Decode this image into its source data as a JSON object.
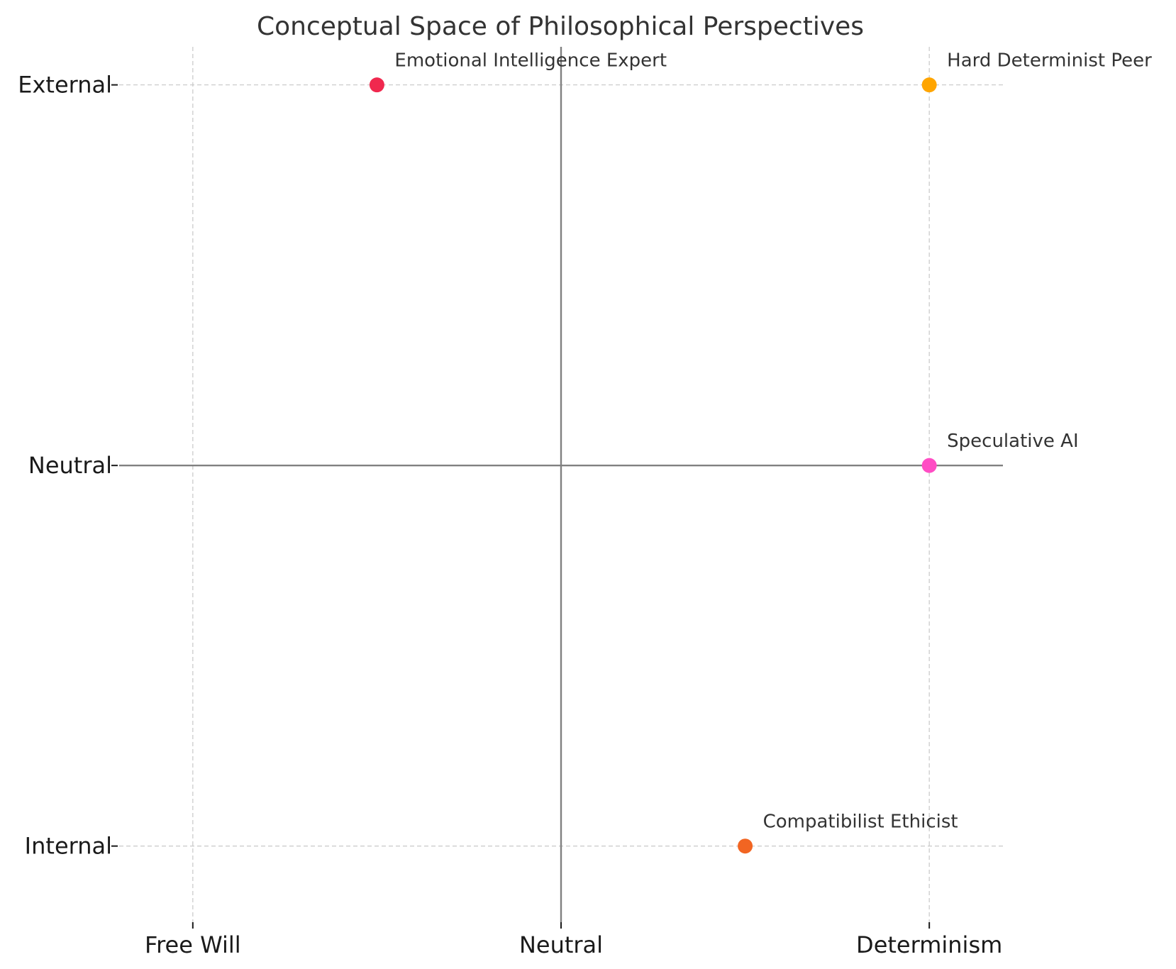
{
  "chart_data": {
    "type": "scatter",
    "title": "Conceptual Space of Philosophical Perspectives",
    "xlabel": "",
    "ylabel": "",
    "x_ticks": [
      {
        "value": -1,
        "label": "Free Will"
      },
      {
        "value": 0,
        "label": "Neutral"
      },
      {
        "value": 1,
        "label": "Determinism"
      }
    ],
    "y_ticks": [
      {
        "value": -1,
        "label": "Internal"
      },
      {
        "value": 0,
        "label": "Neutral"
      },
      {
        "value": 1,
        "label": "External"
      }
    ],
    "xlim": [
      -1.2,
      1.2
    ],
    "ylim": [
      -1.2,
      1.1
    ],
    "grid": true,
    "reference_lines": {
      "x": 0,
      "y": 0,
      "color": "#808080"
    },
    "points": [
      {
        "label": "Emotional Intelligence Expert",
        "x": -0.5,
        "y": 1,
        "color": "#F0284E"
      },
      {
        "label": "Hard Determinist Peer",
        "x": 1,
        "y": 1,
        "color": "#FFA500"
      },
      {
        "label": "Speculative AI",
        "x": 1,
        "y": 0,
        "color": "#FF4DC4"
      },
      {
        "label": "Compatibilist Ethicist",
        "x": 0.5,
        "y": -1,
        "color": "#F26522"
      }
    ]
  }
}
